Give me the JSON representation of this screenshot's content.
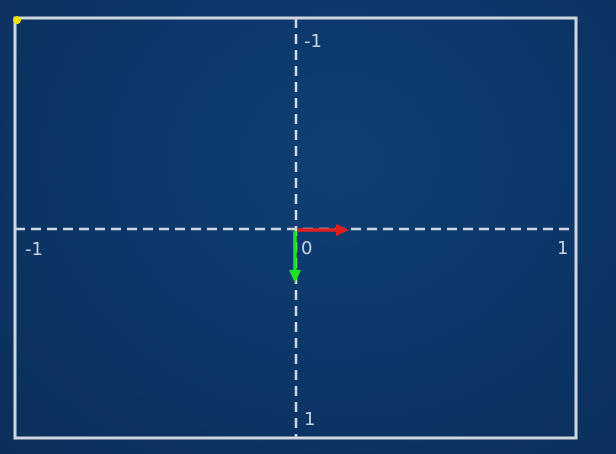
{
  "labels": {
    "top": "-1",
    "bottom": "1",
    "left": "-1",
    "right": "1",
    "origin": "0"
  },
  "axes": {
    "x_range": [
      -1,
      1
    ],
    "y_range": [
      -1,
      1
    ],
    "y_direction": "down"
  },
  "vectors": [
    {
      "name": "x-basis",
      "color": "#e02020",
      "dx": 0.18,
      "dy": 0
    },
    {
      "name": "y-basis",
      "color": "#22e022",
      "dx": 0,
      "dy": 0.2
    }
  ],
  "colors": {
    "background": "#0c376a",
    "frame": "#d0d6de",
    "grid_dash": "#cfd6df",
    "corner_dot": "#f2e000"
  }
}
